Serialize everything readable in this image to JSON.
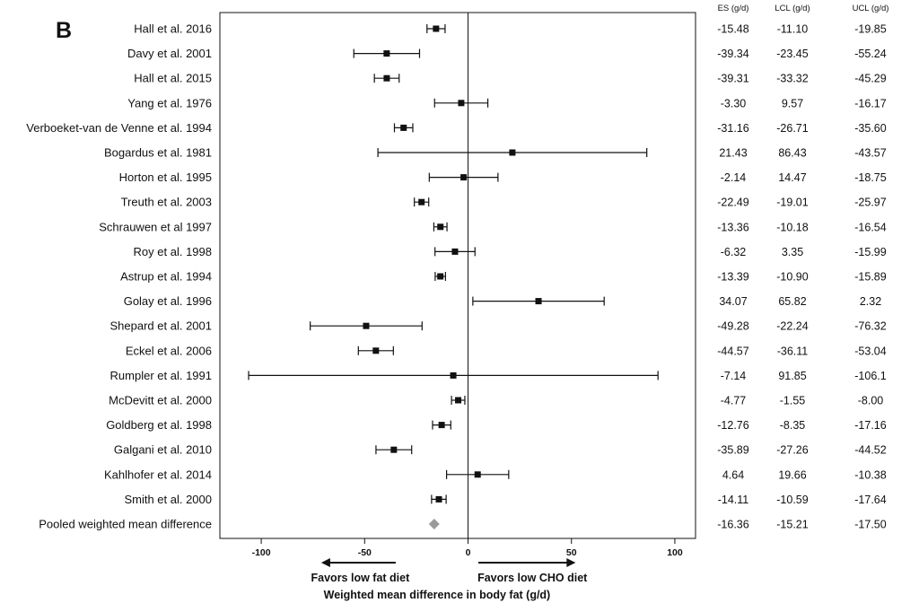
{
  "panel_label": "B",
  "chart_data": {
    "type": "forest",
    "xlabel": "Weighted mean difference in body fat (g/d)",
    "xlim": [
      -120,
      110
    ],
    "xticks": [
      -100,
      -50,
      0,
      50,
      100
    ],
    "reference_line": 0,
    "favors_left": "Favors low fat diet",
    "favors_right": "Favors low CHO diet",
    "columns": [
      "ES (g/d)",
      "LCL (g/d)",
      "UCL (g/d)"
    ],
    "studies": [
      {
        "name": "Hall et al. 2016",
        "es": "-15.48",
        "lcl": "-11.10",
        "ucl": "-19.85"
      },
      {
        "name": "Davy et al. 2001",
        "es": "-39.34",
        "lcl": "-23.45",
        "ucl": "-55.24"
      },
      {
        "name": "Hall et al. 2015",
        "es": "-39.31",
        "lcl": "-33.32",
        "ucl": "-45.29"
      },
      {
        "name": "Yang et al. 1976",
        "es": "-3.30",
        "lcl": "9.57",
        "ucl": "-16.17"
      },
      {
        "name": "Verboeket-van de Venne et al. 1994",
        "es": "-31.16",
        "lcl": "-26.71",
        "ucl": "-35.60"
      },
      {
        "name": "Bogardus et al. 1981",
        "es": "21.43",
        "lcl": "86.43",
        "ucl": "-43.57"
      },
      {
        "name": "Horton et al. 1995",
        "es": "-2.14",
        "lcl": "14.47",
        "ucl": "-18.75"
      },
      {
        "name": "Treuth et al. 2003",
        "es": "-22.49",
        "lcl": "-19.01",
        "ucl": "-25.97"
      },
      {
        "name": "Schrauwen et al 1997",
        "es": "-13.36",
        "lcl": "-10.18",
        "ucl": "-16.54"
      },
      {
        "name": "Roy et al. 1998",
        "es": "-6.32",
        "lcl": "3.35",
        "ucl": "-15.99"
      },
      {
        "name": "Astrup et al. 1994",
        "es": "-13.39",
        "lcl": "-10.90",
        "ucl": "-15.89"
      },
      {
        "name": "Golay et al. 1996",
        "es": "34.07",
        "lcl": "65.82",
        "ucl": "2.32"
      },
      {
        "name": "Shepard et al. 2001",
        "es": "-49.28",
        "lcl": "-22.24",
        "ucl": "-76.32"
      },
      {
        "name": "Eckel et al. 2006",
        "es": "-44.57",
        "lcl": "-36.11",
        "ucl": "-53.04"
      },
      {
        "name": "Rumpler et al. 1991",
        "es": "-7.14",
        "lcl": "91.85",
        "ucl": "-106.1"
      },
      {
        "name": "McDevitt et al. 2000",
        "es": "-4.77",
        "lcl": "-1.55",
        "ucl": "-8.00"
      },
      {
        "name": "Goldberg et al. 1998",
        "es": "-12.76",
        "lcl": "-8.35",
        "ucl": "-17.16"
      },
      {
        "name": "Galgani et al. 2010",
        "es": "-35.89",
        "lcl": "-27.26",
        "ucl": "-44.52"
      },
      {
        "name": "Kahlhofer et al. 2014",
        "es": "4.64",
        "lcl": "19.66",
        "ucl": "-10.38"
      },
      {
        "name": "Smith et al. 2000",
        "es": "-14.11",
        "lcl": "-10.59",
        "ucl": "-17.64"
      }
    ],
    "pooled": {
      "name": "Pooled weighted mean difference",
      "es": "-16.36",
      "lcl": "-15.21",
      "ucl": "-17.50"
    },
    "colors": {
      "marker": "#111111",
      "pooled": "#9a9a9a",
      "line": "#111111"
    }
  }
}
